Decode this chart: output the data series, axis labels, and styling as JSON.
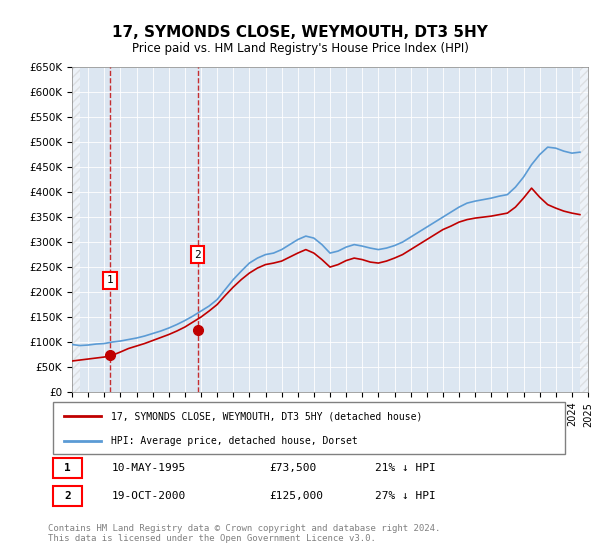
{
  "title": "17, SYMONDS CLOSE, WEYMOUTH, DT3 5HY",
  "subtitle": "Price paid vs. HM Land Registry's House Price Index (HPI)",
  "ylabel_ticks": [
    "£0",
    "£50K",
    "£100K",
    "£150K",
    "£200K",
    "£250K",
    "£300K",
    "£350K",
    "£400K",
    "£450K",
    "£500K",
    "£550K",
    "£600K",
    "£650K"
  ],
  "ylim": [
    0,
    650000
  ],
  "xlim_start": 1993,
  "xlim_end": 2025,
  "hpi_color": "#5b9bd5",
  "price_color": "#c00000",
  "sale1_year": 1995.36,
  "sale1_price": 73500,
  "sale2_year": 2000.8,
  "sale2_price": 125000,
  "legend_line1": "17, SYMONDS CLOSE, WEYMOUTH, DT3 5HY (detached house)",
  "legend_line2": "HPI: Average price, detached house, Dorset",
  "table_row1_num": "1",
  "table_row1_date": "10-MAY-1995",
  "table_row1_price": "£73,500",
  "table_row1_hpi": "21% ↓ HPI",
  "table_row2_num": "2",
  "table_row2_date": "19-OCT-2000",
  "table_row2_price": "£125,000",
  "table_row2_hpi": "27% ↓ HPI",
  "footer": "Contains HM Land Registry data © Crown copyright and database right 2024.\nThis data is licensed under the Open Government Licence v3.0.",
  "background_hatch_color": "#e8e8e8",
  "plot_bg_color": "#dce6f1",
  "hpi_data": [
    [
      1993.0,
      95000
    ],
    [
      1993.5,
      93000
    ],
    [
      1994.0,
      94000
    ],
    [
      1994.5,
      96000
    ],
    [
      1995.0,
      97000
    ],
    [
      1995.5,
      100000
    ],
    [
      1996.0,
      102000
    ],
    [
      1996.5,
      105000
    ],
    [
      1997.0,
      108000
    ],
    [
      1997.5,
      112000
    ],
    [
      1998.0,
      117000
    ],
    [
      1998.5,
      122000
    ],
    [
      1999.0,
      128000
    ],
    [
      1999.5,
      135000
    ],
    [
      2000.0,
      143000
    ],
    [
      2000.5,
      152000
    ],
    [
      2001.0,
      162000
    ],
    [
      2001.5,
      172000
    ],
    [
      2002.0,
      185000
    ],
    [
      2002.5,
      205000
    ],
    [
      2003.0,
      225000
    ],
    [
      2003.5,
      242000
    ],
    [
      2004.0,
      258000
    ],
    [
      2004.5,
      268000
    ],
    [
      2005.0,
      275000
    ],
    [
      2005.5,
      278000
    ],
    [
      2006.0,
      285000
    ],
    [
      2006.5,
      295000
    ],
    [
      2007.0,
      305000
    ],
    [
      2007.5,
      312000
    ],
    [
      2008.0,
      308000
    ],
    [
      2008.5,
      295000
    ],
    [
      2009.0,
      278000
    ],
    [
      2009.5,
      282000
    ],
    [
      2010.0,
      290000
    ],
    [
      2010.5,
      295000
    ],
    [
      2011.0,
      292000
    ],
    [
      2011.5,
      288000
    ],
    [
      2012.0,
      285000
    ],
    [
      2012.5,
      288000
    ],
    [
      2013.0,
      293000
    ],
    [
      2013.5,
      300000
    ],
    [
      2014.0,
      310000
    ],
    [
      2014.5,
      320000
    ],
    [
      2015.0,
      330000
    ],
    [
      2015.5,
      340000
    ],
    [
      2016.0,
      350000
    ],
    [
      2016.5,
      360000
    ],
    [
      2017.0,
      370000
    ],
    [
      2017.5,
      378000
    ],
    [
      2018.0,
      382000
    ],
    [
      2018.5,
      385000
    ],
    [
      2019.0,
      388000
    ],
    [
      2019.5,
      392000
    ],
    [
      2020.0,
      395000
    ],
    [
      2020.5,
      410000
    ],
    [
      2021.0,
      430000
    ],
    [
      2021.5,
      455000
    ],
    [
      2022.0,
      475000
    ],
    [
      2022.5,
      490000
    ],
    [
      2023.0,
      488000
    ],
    [
      2023.5,
      482000
    ],
    [
      2024.0,
      478000
    ],
    [
      2024.5,
      480000
    ]
  ],
  "price_data": [
    [
      1993.0,
      62000
    ],
    [
      1993.5,
      64000
    ],
    [
      1994.0,
      66000
    ],
    [
      1994.5,
      68000
    ],
    [
      1995.0,
      70000
    ],
    [
      1995.5,
      73500
    ],
    [
      1996.0,
      80000
    ],
    [
      1996.5,
      87000
    ],
    [
      1997.0,
      92000
    ],
    [
      1997.5,
      97000
    ],
    [
      1998.0,
      103000
    ],
    [
      1998.5,
      109000
    ],
    [
      1999.0,
      115000
    ],
    [
      1999.5,
      122000
    ],
    [
      2000.0,
      130000
    ],
    [
      2000.5,
      140000
    ],
    [
      2001.0,
      150000
    ],
    [
      2001.5,
      162000
    ],
    [
      2002.0,
      175000
    ],
    [
      2002.5,
      193000
    ],
    [
      2003.0,
      210000
    ],
    [
      2003.5,
      225000
    ],
    [
      2004.0,
      238000
    ],
    [
      2004.5,
      248000
    ],
    [
      2005.0,
      255000
    ],
    [
      2005.5,
      258000
    ],
    [
      2006.0,
      262000
    ],
    [
      2006.5,
      270000
    ],
    [
      2007.0,
      278000
    ],
    [
      2007.5,
      285000
    ],
    [
      2008.0,
      278000
    ],
    [
      2008.5,
      265000
    ],
    [
      2009.0,
      250000
    ],
    [
      2009.5,
      255000
    ],
    [
      2010.0,
      263000
    ],
    [
      2010.5,
      268000
    ],
    [
      2011.0,
      265000
    ],
    [
      2011.5,
      260000
    ],
    [
      2012.0,
      258000
    ],
    [
      2012.5,
      262000
    ],
    [
      2013.0,
      268000
    ],
    [
      2013.5,
      275000
    ],
    [
      2014.0,
      285000
    ],
    [
      2014.5,
      295000
    ],
    [
      2015.0,
      305000
    ],
    [
      2015.5,
      315000
    ],
    [
      2016.0,
      325000
    ],
    [
      2016.5,
      332000
    ],
    [
      2017.0,
      340000
    ],
    [
      2017.5,
      345000
    ],
    [
      2018.0,
      348000
    ],
    [
      2018.5,
      350000
    ],
    [
      2019.0,
      352000
    ],
    [
      2019.5,
      355000
    ],
    [
      2020.0,
      358000
    ],
    [
      2020.5,
      370000
    ],
    [
      2021.0,
      388000
    ],
    [
      2021.5,
      408000
    ],
    [
      2022.0,
      390000
    ],
    [
      2022.5,
      375000
    ],
    [
      2023.0,
      368000
    ],
    [
      2023.5,
      362000
    ],
    [
      2024.0,
      358000
    ],
    [
      2024.5,
      355000
    ]
  ]
}
